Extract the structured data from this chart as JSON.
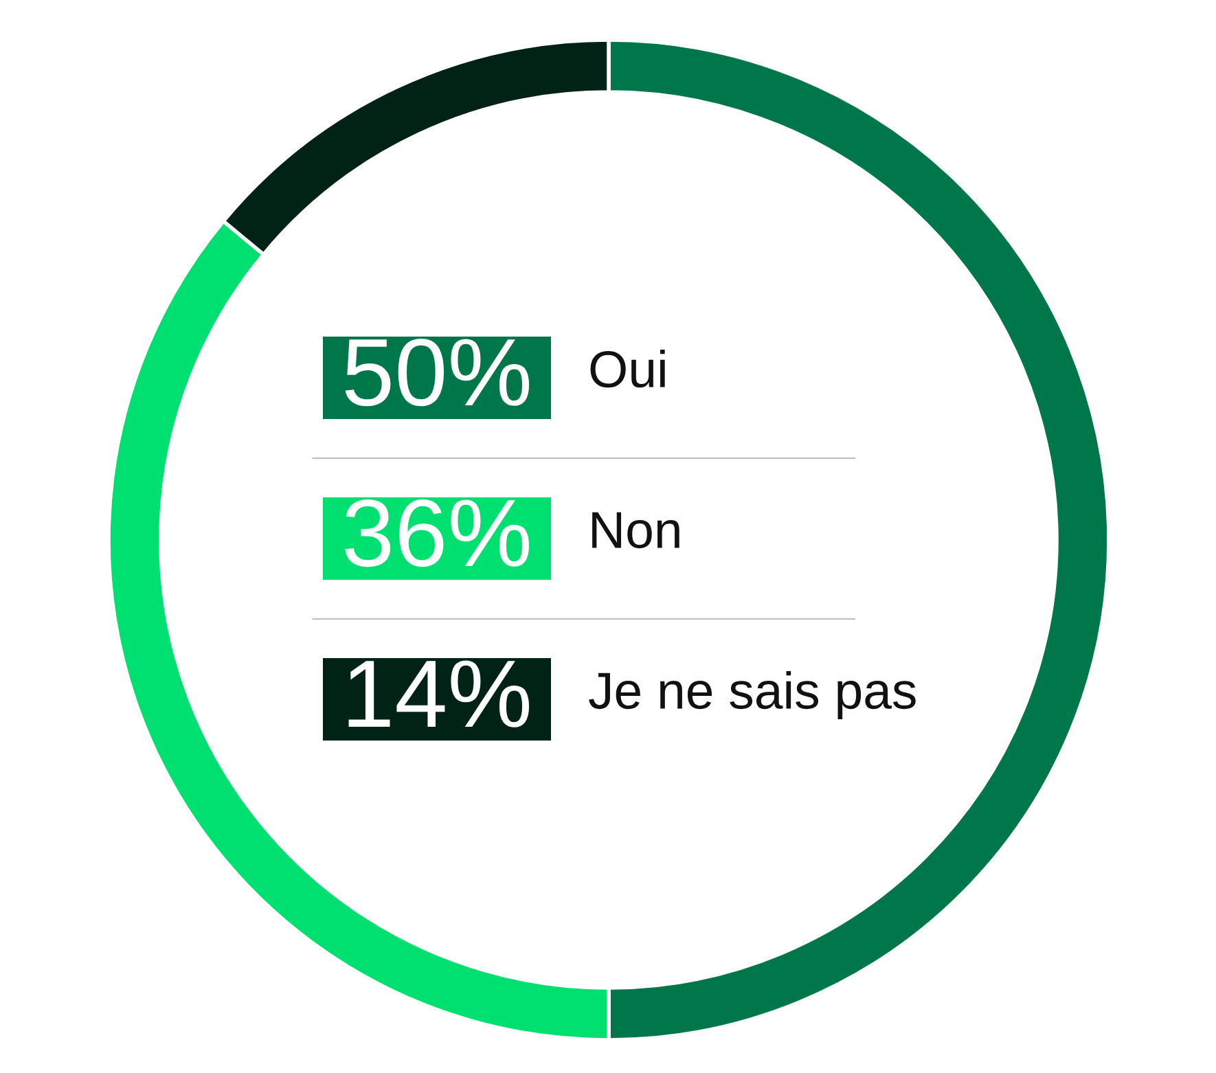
{
  "chart_data": {
    "type": "donut",
    "categories": [
      "Oui",
      "Non",
      "Je ne sais pas"
    ],
    "values": [
      50,
      36,
      14
    ],
    "colors": [
      "#00774a",
      "#00e070",
      "#002315"
    ],
    "value_labels": [
      "50%",
      "36%",
      "14%"
    ],
    "legend": "center"
  }
}
